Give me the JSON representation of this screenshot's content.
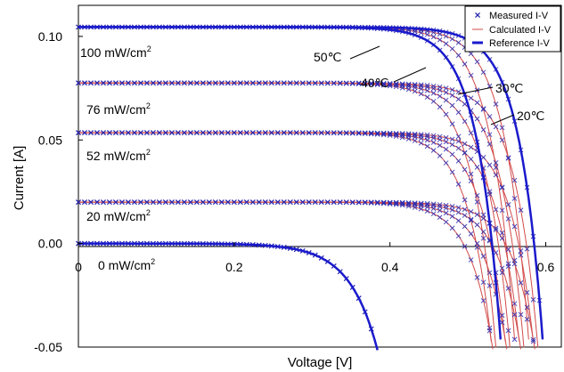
{
  "chart_data": {
    "type": "line",
    "title": "",
    "xlabel": "Voltage [V]",
    "ylabel": "Current [A]",
    "xlim": [
      0,
      0.62
    ],
    "ylim": [
      -0.05,
      0.115
    ],
    "x_ticks": [
      0,
      0.2,
      0.4,
      0.6
    ],
    "x_tick_labels": [
      "0",
      "0.2",
      "0.4",
      "0.6"
    ],
    "y_ticks": [
      -0.05,
      0,
      0.05,
      0.1
    ],
    "y_tick_labels": [
      "-0.05",
      "0.00",
      "0.05",
      "0.10"
    ],
    "grid": false,
    "legend_position": "top-right",
    "legend": [
      {
        "label": "Measured I-V",
        "marker": "x",
        "color": "#1a1aa6"
      },
      {
        "label": "Calculated I-V",
        "marker": "thin-line",
        "color": "#d24a4a"
      },
      {
        "label": "Reference I-V",
        "marker": "thick-line",
        "color": "#1a1acc"
      }
    ],
    "irradiance_labels": [
      {
        "value": "100 mW/cm",
        "sup": "2"
      },
      {
        "value": "76 mW/cm",
        "sup": "2"
      },
      {
        "value": "52 mW/cm",
        "sup": "2"
      },
      {
        "value": "20 mW/cm",
        "sup": "2"
      },
      {
        "value": "0 mW/cm",
        "sup": "2"
      }
    ],
    "temperature_labels": [
      "50℃",
      "40℃",
      "30℃",
      "20℃"
    ],
    "irradiance_levels": [
      {
        "isc": 0.1045,
        "voc_20": 0.585
      },
      {
        "isc": 0.0775,
        "voc_20": 0.575
      },
      {
        "isc": 0.0535,
        "voc_20": 0.565
      },
      {
        "isc": 0.02,
        "voc_20": 0.548
      },
      {
        "isc": 0.0,
        "voc_20": 0.42
      }
    ],
    "temperatures": [
      {
        "label": "20℃",
        "voc_shift": 0.0
      },
      {
        "label": "30℃",
        "voc_shift": -0.018
      },
      {
        "label": "40℃",
        "voc_shift": -0.036
      },
      {
        "label": "50℃",
        "voc_shift": -0.054
      }
    ],
    "reference_curves": [
      {
        "isc": 0.1045,
        "voc": 0.585
      },
      {
        "isc": 0.1045,
        "voc": 0.531
      },
      {
        "isc": 0.0,
        "voc": 0.42
      }
    ],
    "colors": {
      "measured": "#2a2ab0",
      "calculated": "#d24a4a",
      "reference": "#1a1acc"
    }
  }
}
